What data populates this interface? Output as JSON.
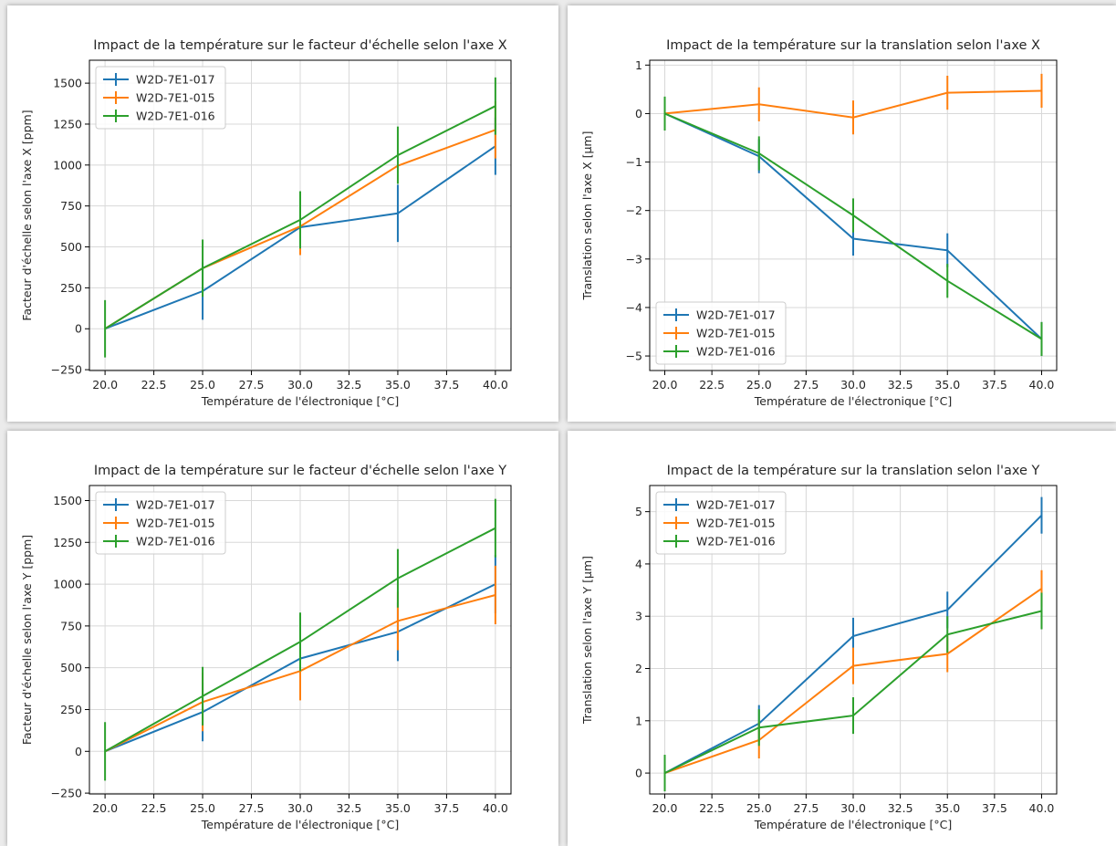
{
  "colors": {
    "blue": "#1f77b4",
    "orange": "#ff7f0e",
    "green": "#2ca02c",
    "grid": "#d8d8d8",
    "axis": "#000000"
  },
  "chart_data": [
    {
      "type": "line",
      "title": "Impact de la température sur le facteur d'échelle selon l'axe X",
      "xlabel": "Température de l'électronique [°C]",
      "ylabel": "Facteur d'échelle selon l'axe X [ppm]",
      "x": [
        20,
        25,
        30,
        35,
        40
      ],
      "xticks": [
        "20.0",
        "22.5",
        "25.0",
        "27.5",
        "30.0",
        "32.5",
        "35.0",
        "37.5",
        "40.0"
      ],
      "yticks": [
        "−250",
        "0",
        "250",
        "500",
        "750",
        "1000",
        "1250",
        "1500"
      ],
      "xlim": [
        19.2,
        40.8
      ],
      "ylim": [
        -255,
        1640
      ],
      "legend": "top-left",
      "grid": true,
      "series": [
        {
          "name": "W2D-7E1-017",
          "color": "#1f77b4",
          "values": [
            0,
            230,
            620,
            705,
            1115
          ],
          "err": [
            0,
            175,
            0,
            175,
            175
          ]
        },
        {
          "name": "W2D-7E1-015",
          "color": "#ff7f0e",
          "values": [
            0,
            370,
            625,
            995,
            1215
          ],
          "err": [
            0,
            0,
            175,
            0,
            175
          ]
        },
        {
          "name": "W2D-7E1-016",
          "color": "#2ca02c",
          "values": [
            0,
            370,
            665,
            1060,
            1360
          ],
          "err": [
            175,
            175,
            175,
            175,
            175
          ]
        }
      ]
    },
    {
      "type": "line",
      "title": "Impact de la température sur la translation selon l'axe X",
      "xlabel": "Température de l'électronique [°C]",
      "ylabel": "Translation selon l'axe X [µm]",
      "x": [
        20,
        25,
        30,
        35,
        40
      ],
      "xticks": [
        "20.0",
        "22.5",
        "25.0",
        "27.5",
        "30.0",
        "32.5",
        "35.0",
        "37.5",
        "40.0"
      ],
      "yticks": [
        "−5",
        "−4",
        "−3",
        "−2",
        "−1",
        "0",
        "1"
      ],
      "xlim": [
        19.2,
        40.8
      ],
      "ylim": [
        -5.3,
        1.1
      ],
      "legend": "bottom-left",
      "grid": true,
      "series": [
        {
          "name": "W2D-7E1-017",
          "color": "#1f77b4",
          "values": [
            0,
            -0.88,
            -2.58,
            -2.82,
            -4.65
          ],
          "err": [
            0,
            0.35,
            0.35,
            0.35,
            0.35
          ]
        },
        {
          "name": "W2D-7E1-015",
          "color": "#ff7f0e",
          "values": [
            0,
            0.19,
            -0.08,
            0.43,
            0.47
          ],
          "err": [
            0,
            0.35,
            0.35,
            0.35,
            0.35
          ]
        },
        {
          "name": "W2D-7E1-016",
          "color": "#2ca02c",
          "values": [
            0,
            -0.82,
            -2.1,
            -3.45,
            -4.65
          ],
          "err": [
            0.35,
            0.35,
            0.35,
            0.35,
            0.35
          ]
        }
      ]
    },
    {
      "type": "line",
      "title": "Impact de la température sur le facteur d'échelle selon l'axe Y",
      "xlabel": "Température de l'électronique [°C]",
      "ylabel": "Facteur d'échelle selon l'axe Y [ppm]",
      "x": [
        20,
        25,
        30,
        35,
        40
      ],
      "xticks": [
        "20.0",
        "22.5",
        "25.0",
        "27.5",
        "30.0",
        "32.5",
        "35.0",
        "37.5",
        "40.0"
      ],
      "yticks": [
        "−250",
        "0",
        "250",
        "500",
        "750",
        "1000",
        "1250",
        "1500"
      ],
      "xlim": [
        19.2,
        40.8
      ],
      "ylim": [
        -255,
        1590
      ],
      "legend": "top-left",
      "grid": true,
      "series": [
        {
          "name": "W2D-7E1-017",
          "color": "#1f77b4",
          "values": [
            0,
            235,
            555,
            715,
            1000
          ],
          "err": [
            0,
            175,
            0,
            175,
            175
          ]
        },
        {
          "name": "W2D-7E1-015",
          "color": "#ff7f0e",
          "values": [
            0,
            295,
            480,
            780,
            935
          ],
          "err": [
            0,
            175,
            175,
            175,
            175
          ]
        },
        {
          "name": "W2D-7E1-016",
          "color": "#2ca02c",
          "values": [
            0,
            330,
            655,
            1035,
            1335
          ],
          "err": [
            175,
            175,
            175,
            175,
            175
          ]
        }
      ]
    },
    {
      "type": "line",
      "title": "Impact de la température sur la translation selon l'axe Y",
      "xlabel": "Température de l'électronique [°C]",
      "ylabel": "Translation selon l'axe Y [µm]",
      "x": [
        20,
        25,
        30,
        35,
        40
      ],
      "xticks": [
        "20.0",
        "22.5",
        "25.0",
        "27.5",
        "30.0",
        "32.5",
        "35.0",
        "37.5",
        "40.0"
      ],
      "yticks": [
        "0",
        "1",
        "2",
        "3",
        "4",
        "5"
      ],
      "xlim": [
        19.2,
        40.8
      ],
      "ylim": [
        -0.4,
        5.5
      ],
      "legend": "top-left",
      "grid": true,
      "series": [
        {
          "name": "W2D-7E1-017",
          "color": "#1f77b4",
          "values": [
            0,
            0.95,
            2.62,
            3.12,
            4.93
          ],
          "err": [
            0,
            0.35,
            0.35,
            0.35,
            0.35
          ]
        },
        {
          "name": "W2D-7E1-015",
          "color": "#ff7f0e",
          "values": [
            0,
            0.63,
            2.05,
            2.28,
            3.53
          ],
          "err": [
            0,
            0.35,
            0.35,
            0.35,
            0.35
          ]
        },
        {
          "name": "W2D-7E1-016",
          "color": "#2ca02c",
          "values": [
            0,
            0.87,
            1.1,
            2.65,
            3.1
          ],
          "err": [
            0.35,
            0.35,
            0.35,
            0.35,
            0.35
          ]
        }
      ]
    }
  ]
}
